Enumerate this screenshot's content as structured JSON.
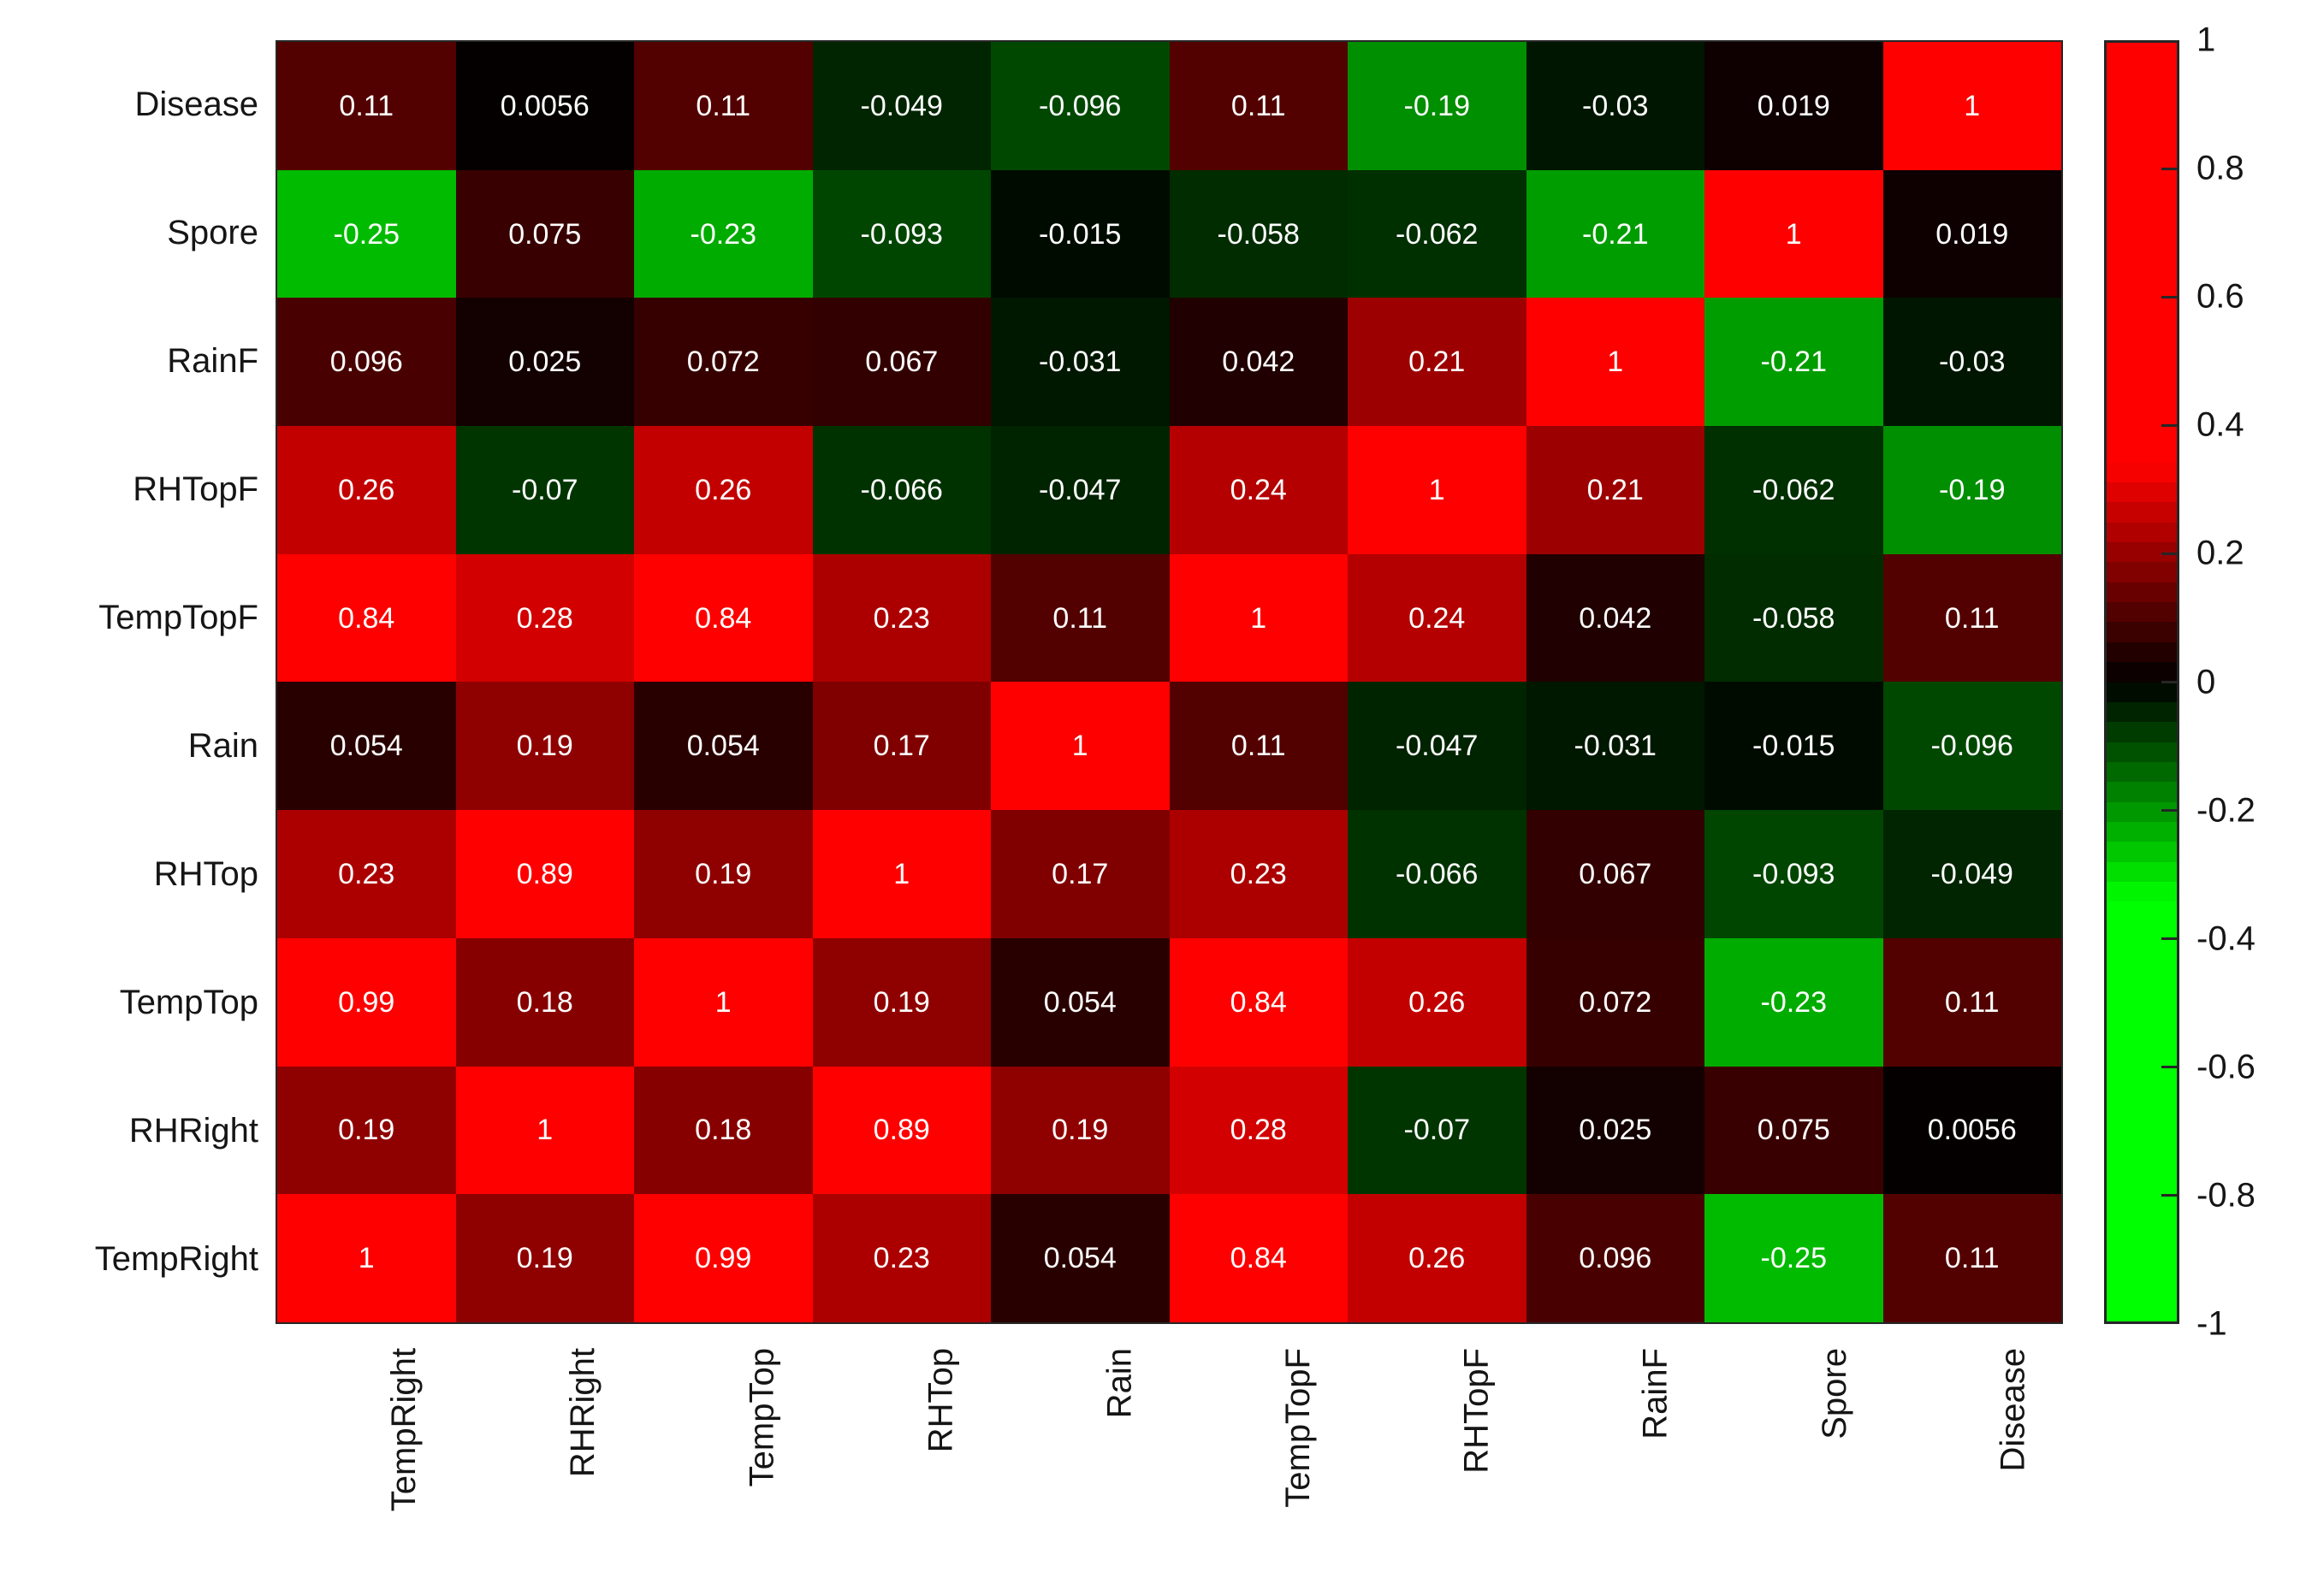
{
  "chart_data": {
    "type": "heatmap",
    "title": "",
    "xlabel": "",
    "ylabel": "",
    "columns": [
      "TempRight",
      "RHRight",
      "TempTop",
      "RHTop",
      "Rain",
      "TempTopF",
      "RHTopF",
      "RainF",
      "Spore",
      "Disease"
    ],
    "rows": [
      "Disease",
      "Spore",
      "RainF",
      "RHTopF",
      "TempTopF",
      "Rain",
      "RHTop",
      "TempTop",
      "RHRight",
      "TempRight"
    ],
    "values": [
      [
        "0.11",
        "0.0056",
        "0.11",
        "-0.049",
        "-0.096",
        "0.11",
        "-0.19",
        "-0.03",
        "0.019",
        "1"
      ],
      [
        "-0.25",
        "0.075",
        "-0.23",
        "-0.093",
        "-0.015",
        "-0.058",
        "-0.062",
        "-0.21",
        "1",
        "0.019"
      ],
      [
        "0.096",
        "0.025",
        "0.072",
        "0.067",
        "-0.031",
        "0.042",
        "0.21",
        "1",
        "-0.21",
        "-0.03"
      ],
      [
        "0.26",
        "-0.07",
        "0.26",
        "-0.066",
        "-0.047",
        "0.24",
        "1",
        "0.21",
        "-0.062",
        "-0.19"
      ],
      [
        "0.84",
        "0.28",
        "0.84",
        "0.23",
        "0.11",
        "1",
        "0.24",
        "0.042",
        "-0.058",
        "0.11"
      ],
      [
        "0.054",
        "0.19",
        "0.054",
        "0.17",
        "1",
        "0.11",
        "-0.047",
        "-0.031",
        "-0.015",
        "-0.096"
      ],
      [
        "0.23",
        "0.89",
        "0.19",
        "1",
        "0.17",
        "0.23",
        "-0.066",
        "0.067",
        "-0.093",
        "-0.049"
      ],
      [
        "0.99",
        "0.18",
        "1",
        "0.19",
        "0.054",
        "0.84",
        "0.26",
        "0.072",
        "-0.23",
        "0.11"
      ],
      [
        "0.19",
        "1",
        "0.18",
        "0.89",
        "0.19",
        "0.28",
        "-0.07",
        "0.025",
        "0.075",
        "0.0056"
      ],
      [
        "1",
        "0.19",
        "0.99",
        "0.23",
        "0.054",
        "0.84",
        "0.26",
        "0.096",
        "-0.25",
        "0.11"
      ]
    ],
    "colorbar": {
      "position": "right",
      "range": [
        -1,
        1
      ],
      "ticks": [
        "1",
        "0.8",
        "0.6",
        "0.4",
        "0.2",
        "0",
        "-0.2",
        "-0.4",
        "-0.6",
        "-0.8",
        "-1"
      ]
    },
    "colormap": {
      "type": "red-black-green",
      "positive": "#FF0000",
      "zero": "#000000",
      "negative": "#00FF00",
      "saturation": 0.34,
      "levels": 64
    },
    "cell_text_color": "#FFFFFF",
    "axis_text_color": "#151515",
    "grid": false
  }
}
